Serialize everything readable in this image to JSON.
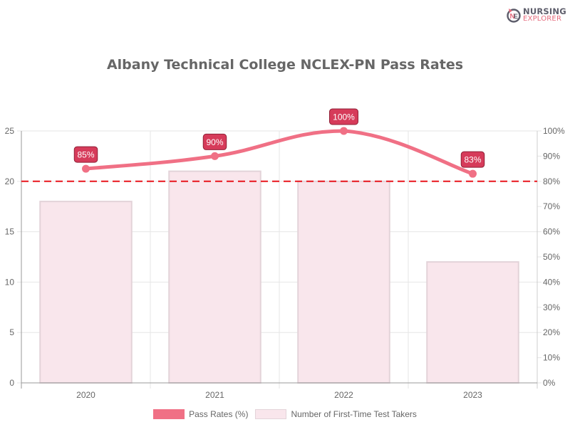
{
  "logo": {
    "line1": "NURSING",
    "line2": "EXPLORER",
    "icon": "nursing-explorer-logo-icon"
  },
  "title": "Albany Technical College NCLEX-PN Pass Rates",
  "colors": {
    "line": "#f07085",
    "bar_fill": "#f9e6ec",
    "bar_border": "#e3d3d9",
    "label_bg": "#d63b5a",
    "label_border": "#8f2137",
    "threshold": "#e8141c",
    "grid": "#e6e6e6",
    "axis": "#999999",
    "text": "#666666"
  },
  "axes": {
    "left_ticks": [
      "0",
      "5",
      "10",
      "15",
      "20",
      "25"
    ],
    "right_ticks": [
      "0%",
      "10%",
      "20%",
      "30%",
      "40%",
      "50%",
      "60%",
      "70%",
      "80%",
      "90%",
      "100%"
    ],
    "x_ticks": [
      "2020",
      "2021",
      "2022",
      "2023"
    ]
  },
  "legend": [
    {
      "label": "Pass Rates (%)",
      "type": "line"
    },
    {
      "label": "Number of First-Time Test Takers",
      "type": "bar"
    }
  ],
  "point_labels": [
    "85%",
    "90%",
    "100%",
    "83%"
  ],
  "chart_data": {
    "type": "bar+line",
    "title": "Albany Technical College NCLEX-PN Pass Rates",
    "categories": [
      "2020",
      "2021",
      "2022",
      "2023"
    ],
    "series": [
      {
        "name": "Pass Rates (%)",
        "type": "line",
        "axis": "right",
        "values": [
          85,
          90,
          100,
          83
        ]
      },
      {
        "name": "Number of First-Time Test Takers",
        "type": "bar",
        "axis": "left",
        "values": [
          18,
          21,
          20,
          12
        ]
      }
    ],
    "reference_line": {
      "axis": "right",
      "value": 80,
      "style": "dashed",
      "color": "#e8141c"
    },
    "ylim_left": [
      0,
      25
    ],
    "ylim_right": [
      0,
      100
    ],
    "xlabel": "",
    "ylabel": "",
    "grid": true,
    "legend_position": "bottom"
  }
}
